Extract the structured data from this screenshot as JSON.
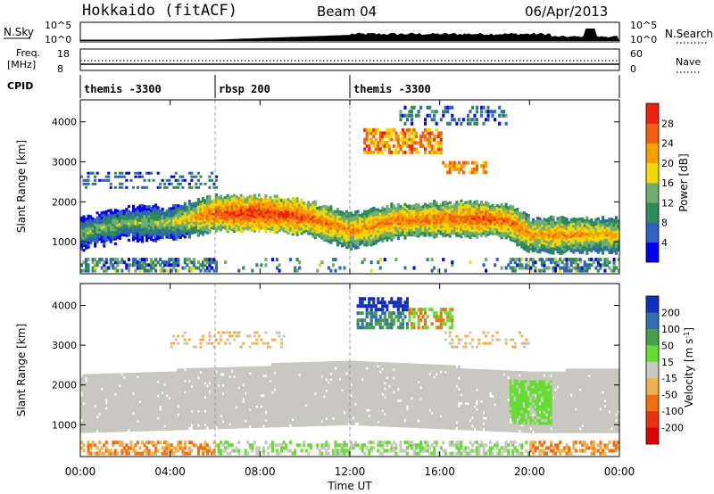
{
  "header": {
    "station": "Hokkaido (fitACF)",
    "beam": "Beam 04",
    "date": "06/Apr/2013"
  },
  "top_strips": {
    "nsky_label": "N.Sky",
    "nsky_ticks": [
      "10^5",
      "10^0"
    ],
    "nsearch_label": "N.Search",
    "nsearch_ticks": [
      "10^5",
      "10^0"
    ],
    "freq_label_1": "Freq.",
    "freq_label_2": "[MHz]",
    "freq_ticks": [
      "18",
      "8"
    ],
    "nave_label": "Nave",
    "nave_ticks": [
      "60",
      "0"
    ],
    "cpid_label": "CPID",
    "cpid_segments": [
      {
        "label": "themis -3300",
        "start_hour": 0
      },
      {
        "label": "rbsp 200",
        "start_hour": 6
      },
      {
        "label": "themis -3300",
        "start_hour": 12
      }
    ]
  },
  "time_axis": {
    "label": "Time UT",
    "ticks": [
      "00:00",
      "04:00",
      "08:00",
      "12:00",
      "16:00",
      "20:00",
      "00:00"
    ],
    "tick_hours": [
      0,
      4,
      8,
      12,
      16,
      20,
      24
    ]
  },
  "range_axis": {
    "label": "Slant Range [km]",
    "ticks": [
      "1000",
      "2000",
      "3000",
      "4000"
    ],
    "tick_values": [
      1000,
      2000,
      3000,
      4000
    ],
    "range_km": [
      200,
      4550
    ]
  },
  "power_colorbar": {
    "label": "Power [dB]",
    "ticks": [
      "28",
      "24",
      "20",
      "16",
      "12",
      "8",
      "4"
    ],
    "colors": [
      "#0000ee",
      "#3060c0",
      "#2e8b57",
      "#6fae6f",
      "#f0d800",
      "#f6a000",
      "#f06010",
      "#ee2010"
    ]
  },
  "velocity_colorbar": {
    "label": "Velocity [m s",
    "label_sup": "-1",
    "label_end": "]",
    "ticks": [
      "200",
      "100",
      "50",
      "15",
      "-15",
      "-50",
      "-100",
      "-200"
    ],
    "colors": [
      "#1030c0",
      "#2e6fae",
      "#4a9e4a",
      "#66dd33",
      "#c8c8c0",
      "#f0b050",
      "#f07010",
      "#ee3010",
      "#dd0000"
    ]
  },
  "chart_data": [
    {
      "type": "heatmap",
      "title": "Power",
      "xlabel": "Time UT",
      "ylabel": "Slant Range [km]",
      "xlim_hours": [
        0,
        24
      ],
      "ylim": [
        200,
        4550
      ],
      "colorbar_label": "Power [dB]",
      "zlim": [
        0,
        30
      ],
      "main_band_center_km": [
        [
          0,
          1200
        ],
        [
          2,
          1450
        ],
        [
          4,
          1450
        ],
        [
          6,
          1700
        ],
        [
          8,
          1700
        ],
        [
          10,
          1600
        ],
        [
          12,
          1250
        ],
        [
          14,
          1500
        ],
        [
          16,
          1550
        ],
        [
          18,
          1550
        ],
        [
          19,
          1500
        ],
        [
          20,
          1150
        ],
        [
          22,
          1150
        ],
        [
          24,
          1150
        ]
      ],
      "main_band_power_db": [
        [
          0,
          14
        ],
        [
          2,
          14
        ],
        [
          4,
          16
        ],
        [
          6,
          26
        ],
        [
          8,
          28
        ],
        [
          10,
          26
        ],
        [
          12,
          22
        ],
        [
          14,
          24
        ],
        [
          16,
          24
        ],
        [
          18,
          26
        ],
        [
          20,
          22
        ],
        [
          22,
          22
        ],
        [
          24,
          20
        ]
      ],
      "grid": false
    },
    {
      "type": "heatmap",
      "title": "Velocity",
      "xlabel": "Time UT",
      "ylabel": "Slant Range [km]",
      "xlim_hours": [
        0,
        24
      ],
      "ylim": [
        200,
        4550
      ],
      "colorbar_label": "Velocity [m s-1]",
      "zlim": [
        -250,
        250
      ],
      "ground_scatter_band_km": [
        [
          0,
          800,
          2200
        ],
        [
          12,
          1000,
          2600
        ],
        [
          20,
          800,
          2300
        ],
        [
          24,
          800,
          2400
        ]
      ],
      "grid": false
    }
  ]
}
